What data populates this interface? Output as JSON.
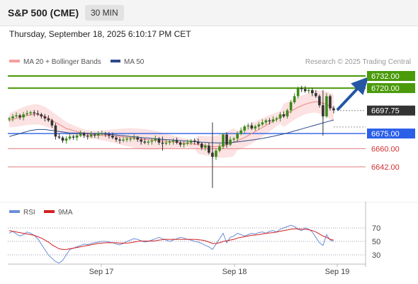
{
  "header": {
    "title": "S&P 500 (CME)",
    "timeframe": "30 MIN"
  },
  "datetime": "Thursday, September 18, 2025 6:10:17 PM CET",
  "legend": {
    "bollinger_label": "MA 20 + Bollinger Bands",
    "ma50_label": "MA 50",
    "copyright": "Research © 2025 Trading Central"
  },
  "rsi_legend": {
    "rsi_label": "RSI",
    "ma_label": "9MA"
  },
  "colors": {
    "green": "#4a9a0a",
    "blue": "#2a5fe8",
    "red": "#e07b7b",
    "candle_up": "#3a8a1a",
    "candle_down": "#333333",
    "arrow": "#2456a4",
    "current": "#333333",
    "ma50": "#2c4a8c",
    "ma20": "#f08080",
    "rsi": "#6b8fd8",
    "rsi_ma": "#d42020"
  },
  "chart_data": [
    {
      "type": "candlestick",
      "title": "S&P 500 (CME)",
      "interval": "30 MIN",
      "x_tick_labels": [
        "Sep 17",
        "Sep 18",
        "Sep 19"
      ],
      "ylim": [
        6620,
        6740
      ],
      "price_levels": [
        {
          "value": 6732.0,
          "label": "6732.00",
          "style": "target",
          "color": "#4a9a0a"
        },
        {
          "value": 6720.0,
          "label": "6720.00",
          "style": "target",
          "color": "#4a9a0a"
        },
        {
          "value": 6697.75,
          "label": "6697.75",
          "style": "current",
          "color": "#333333"
        },
        {
          "value": 6675.0,
          "label": "6675.00",
          "style": "pivot",
          "color": "#2a5fe8"
        },
        {
          "value": 6660.0,
          "label": "6660.00",
          "style": "support",
          "color": "#e07b7b"
        },
        {
          "value": 6642.0,
          "label": "6642.00",
          "style": "support",
          "color": "#e07b7b"
        }
      ],
      "candles_close": [
        6690,
        6692,
        6693,
        6691,
        6694,
        6695,
        6696,
        6695,
        6694,
        6692,
        6690,
        6688,
        6683,
        6672,
        6671,
        6668,
        6670,
        6672,
        6671,
        6673,
        6675,
        6673,
        6672,
        6674,
        6673,
        6675,
        6675,
        6674,
        6673,
        6671,
        6669,
        6668,
        6669,
        6670,
        6670,
        6671,
        6669,
        6667,
        6666,
        6667,
        6668,
        6670,
        6666,
        6665,
        6666,
        6667,
        6668,
        6666,
        6664,
        6665,
        6666,
        6668,
        6667,
        6665,
        6661,
        6663,
        6656,
        6652,
        6658,
        6662,
        6674,
        6664,
        6669,
        6670,
        6675,
        6678,
        6682,
        6683,
        6680,
        6682,
        6684,
        6686,
        6688,
        6687,
        6689,
        6690,
        6694,
        6692,
        6698,
        6706,
        6712,
        6720,
        6719,
        6717,
        6718,
        6715,
        6712,
        6703,
        6692,
        6712,
        6700,
        6698
      ],
      "ma50": [
        6672,
        6673,
        6674,
        6675,
        6676,
        6677,
        6678,
        6678.5,
        6679,
        6679,
        6679,
        6678.5,
        6678,
        6677.5,
        6677,
        6676.5,
        6676,
        6675.5,
        6675.5,
        6675.5,
        6675.5,
        6675.5,
        6675.3,
        6675,
        6675,
        6674.8,
        6674.5,
        6674.5,
        6674.2,
        6674,
        6673.6,
        6673.2,
        6673,
        6672.5,
        6672,
        6671.8,
        6671.5,
        6671,
        6670.7,
        6670.5,
        6670.2,
        6670,
        6669.6,
        6669.3,
        6669,
        6668.8,
        6668.5,
        6668.3,
        6668,
        6667.7,
        6667.5,
        6667.2,
        6667,
        6666.8,
        6666.5,
        6666.3,
        6666,
        6665.9,
        6665.8,
        6665.8,
        6665.8,
        6665.9,
        6666,
        6666.3,
        6666.7,
        6667.2,
        6667.6,
        6668.1,
        6668.6,
        6669.1,
        6669.6,
        6670.1,
        6670.8,
        6671.5,
        6672.2,
        6673,
        6673.8,
        6674.6,
        6675.5,
        6676.5,
        6677.5,
        6678.5,
        6679.5,
        6680.5,
        6681.5,
        6682.5,
        6683.5,
        6684.5,
        6685.5,
        6686.5,
        6687.5,
        6688.5
      ],
      "ma20": [
        6688,
        6689,
        6690,
        6691,
        6692,
        6693,
        6693.5,
        6694,
        6694,
        6693,
        6692,
        6690,
        6688,
        6686,
        6684,
        6682,
        6680,
        6679,
        6678,
        6677,
        6676,
        6675,
        6674.5,
        6674,
        6673.6,
        6673.3,
        6673,
        6673,
        6672.8,
        6672.6,
        6672.3,
        6672,
        6671.6,
        6671.3,
        6671,
        6670.5,
        6670,
        6669.6,
        6669.3,
        6669,
        6668.7,
        6668.4,
        6668,
        6667.7,
        6667.4,
        6667,
        6666.7,
        6666.3,
        6666,
        6665.7,
        6665.4,
        6665,
        6664.5,
        6664,
        6663.5,
        6663,
        6662.5,
        6662,
        6662,
        6662.5,
        6663,
        6664,
        6665,
        6666.5,
        6668,
        6669.5,
        6671,
        6673,
        6675,
        6677,
        6679,
        6681,
        6683,
        6685,
        6687,
        6689,
        6691,
        6693,
        6695,
        6697,
        6699,
        6701,
        6702.5,
        6704,
        6705,
        6706,
        6706.5,
        6706,
        6705,
        6704,
        6702,
        6700
      ],
      "rsi": [
        62,
        65,
        61,
        58,
        60,
        64,
        62,
        59,
        54,
        46,
        38,
        30,
        25,
        20,
        18,
        22,
        30,
        38,
        40,
        42,
        44,
        46,
        45,
        47,
        48,
        49,
        50,
        50,
        49,
        48,
        46,
        45,
        47,
        50,
        52,
        54,
        53,
        51,
        49,
        50,
        52,
        54,
        56,
        54,
        52,
        50,
        52,
        54,
        56,
        55,
        53,
        52,
        50,
        49,
        47,
        44,
        42,
        38,
        46,
        54,
        62,
        48,
        56,
        58,
        62,
        60,
        58,
        60,
        62,
        61,
        63,
        64,
        62,
        65,
        66,
        64,
        68,
        70,
        72,
        74,
        72,
        68,
        66,
        70,
        68,
        64,
        56,
        48,
        44,
        60,
        52,
        50
      ],
      "rsi_ma": [
        66,
        65,
        64,
        63,
        62,
        61,
        60,
        59,
        57,
        55,
        52,
        49,
        45,
        42,
        39,
        38,
        38,
        39,
        40,
        41,
        42,
        43,
        44,
        45,
        46,
        47,
        47.5,
        48,
        48,
        48,
        48,
        47.5,
        47.5,
        47.5,
        48,
        49,
        50,
        50.5,
        50.5,
        50.5,
        50.5,
        51,
        52,
        52.5,
        53,
        53,
        53,
        53,
        53,
        53,
        53,
        53,
        53,
        52.5,
        52,
        51,
        49,
        47,
        47,
        48,
        50,
        51,
        52,
        53,
        55,
        56,
        57,
        58,
        59,
        59.5,
        60,
        61,
        62,
        62.5,
        63,
        64,
        65,
        66,
        67,
        68,
        68.5,
        68.5,
        68,
        68,
        67.5,
        66,
        64,
        61,
        58,
        56,
        53,
        52
      ],
      "rsi_levels": [
        70,
        50,
        30
      ]
    }
  ]
}
